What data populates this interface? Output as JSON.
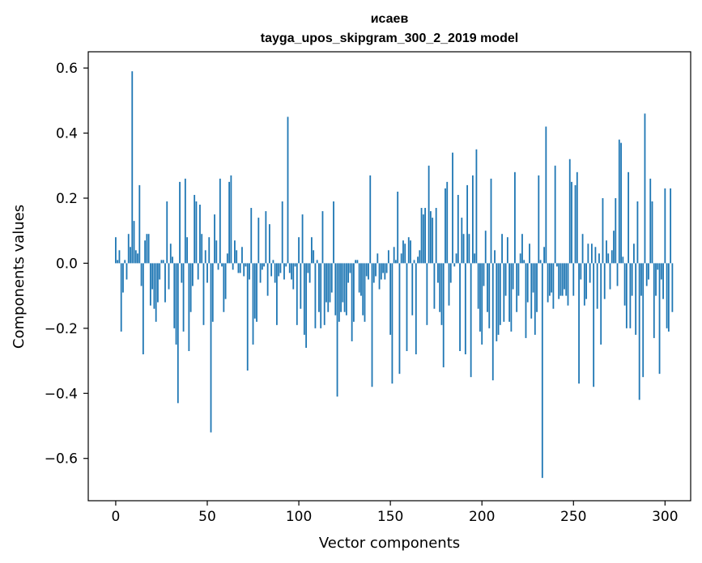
{
  "chart_data": {
    "type": "bar",
    "title_line1": "исаев",
    "title_line2": "tayga_upos_skipgram_300_2_2019 model",
    "xlabel": "Vector components",
    "ylabel": "Components values",
    "xlim": [
      -15,
      314
    ],
    "ylim": [
      -0.73,
      0.65
    ],
    "xticks": [
      0,
      50,
      100,
      150,
      200,
      250,
      300
    ],
    "xtick_labels": [
      "0",
      "50",
      "100",
      "150",
      "200",
      "250",
      "300"
    ],
    "yticks": [
      -0.6,
      -0.4,
      -0.2,
      0.0,
      0.2,
      0.4,
      0.6
    ],
    "ytick_labels": [
      "−0.6",
      "−0.4",
      "−0.2",
      "0.0",
      "0.2",
      "0.4",
      "0.6"
    ],
    "bar_color": "#1f77b4",
    "values": [
      0.08,
      0.01,
      0.04,
      -0.21,
      -0.09,
      0.01,
      -0.05,
      0.09,
      0.05,
      0.59,
      0.13,
      0.04,
      0.03,
      0.24,
      -0.07,
      -0.28,
      0.07,
      0.09,
      0.09,
      -0.13,
      -0.08,
      -0.14,
      -0.18,
      -0.12,
      -0.05,
      0.01,
      0.01,
      -0.12,
      0.19,
      -0.08,
      0.06,
      0.02,
      -0.2,
      -0.25,
      -0.43,
      0.25,
      -0.06,
      -0.21,
      0.26,
      0.08,
      -0.27,
      -0.15,
      -0.07,
      0.21,
      0.19,
      -0.05,
      0.18,
      0.09,
      -0.19,
      0.04,
      -0.06,
      0.08,
      -0.52,
      -0.18,
      0.15,
      0.07,
      -0.02,
      0.26,
      -0.01,
      -0.15,
      -0.11,
      0.03,
      0.25,
      0.27,
      -0.02,
      0.07,
      0.04,
      -0.03,
      -0.03,
      0.05,
      -0.04,
      -0.01,
      -0.33,
      -0.05,
      0.17,
      -0.25,
      -0.17,
      -0.18,
      0.14,
      -0.06,
      -0.02,
      -0.01,
      0.16,
      -0.1,
      0.12,
      -0.04,
      0.01,
      -0.06,
      -0.19,
      -0.04,
      -0.03,
      0.19,
      -0.05,
      -0.01,
      0.45,
      -0.03,
      -0.05,
      -0.08,
      -0.01,
      -0.19,
      0.08,
      -0.14,
      0.15,
      -0.22,
      -0.26,
      -0.03,
      -0.06,
      0.08,
      0.04,
      -0.2,
      0.01,
      -0.15,
      -0.2,
      0.16,
      -0.19,
      -0.12,
      -0.15,
      -0.12,
      -0.09,
      0.19,
      -0.16,
      -0.41,
      -0.18,
      -0.15,
      -0.12,
      -0.15,
      -0.16,
      -0.06,
      -0.03,
      -0.24,
      -0.18,
      0.01,
      0.01,
      -0.09,
      -0.1,
      -0.16,
      -0.18,
      -0.04,
      -0.05,
      0.27,
      -0.38,
      -0.06,
      -0.04,
      0.03,
      -0.08,
      -0.05,
      -0.03,
      -0.05,
      -0.03,
      0.04,
      -0.22,
      -0.37,
      0.05,
      0.01,
      0.22,
      -0.34,
      0.03,
      0.07,
      0.06,
      -0.27,
      0.08,
      0.07,
      -0.16,
      0.01,
      -0.28,
      0.02,
      0.04,
      0.17,
      0.15,
      0.17,
      -0.19,
      0.3,
      0.16,
      0.14,
      -0.14,
      0.17,
      -0.06,
      -0.15,
      -0.19,
      -0.32,
      0.23,
      0.25,
      -0.13,
      -0.06,
      0.34,
      -0.01,
      0.03,
      0.21,
      -0.27,
      0.14,
      0.09,
      -0.28,
      0.24,
      0.09,
      -0.35,
      0.27,
      0.03,
      0.35,
      -0.14,
      -0.21,
      -0.25,
      -0.07,
      0.1,
      -0.15,
      -0.2,
      0.26,
      -0.36,
      0.04,
      -0.24,
      -0.22,
      -0.19,
      0.09,
      -0.18,
      -0.1,
      0.08,
      -0.18,
      -0.21,
      -0.08,
      0.28,
      -0.15,
      -0.1,
      0.03,
      0.09,
      0.01,
      -0.23,
      -0.12,
      0.06,
      -0.17,
      -0.09,
      -0.22,
      -0.15,
      0.27,
      0.01,
      -0.66,
      0.05,
      0.42,
      -0.12,
      -0.1,
      -0.09,
      -0.14,
      0.3,
      -0.01,
      -0.11,
      -0.1,
      -0.1,
      -0.08,
      -0.1,
      -0.13,
      0.32,
      0.25,
      -0.1,
      0.24,
      0.28,
      -0.37,
      -0.05,
      0.09,
      -0.13,
      -0.11,
      0.06,
      -0.06,
      0.06,
      -0.38,
      0.05,
      -0.14,
      0.03,
      -0.25,
      0.2,
      -0.11,
      0.07,
      0.03,
      -0.08,
      0.04,
      0.1,
      0.2,
      -0.07,
      0.38,
      0.37,
      0.02,
      -0.13,
      -0.2,
      0.28,
      -0.2,
      -0.1,
      0.06,
      -0.22,
      0.19,
      -0.42,
      -0.1,
      -0.35,
      0.46,
      -0.07,
      -0.05,
      0.26,
      0.19,
      -0.23,
      -0.1,
      -0.02,
      -0.34,
      -0.05,
      -0.11,
      0.23,
      -0.2,
      -0.21,
      0.23,
      -0.15
    ]
  }
}
